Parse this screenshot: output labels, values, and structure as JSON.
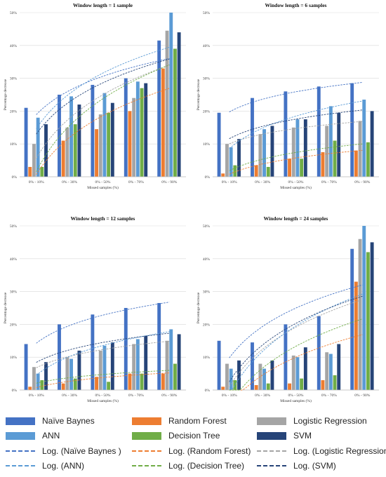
{
  "series_colors": [
    "#4472C4",
    "#ED7D31",
    "#A5A5A5",
    "#5B9BD5",
    "#70AD47",
    "#264478"
  ],
  "chart_data": [
    {
      "type": "bar",
      "title": "Window length = 1 sample",
      "xlabel": "Missed samples (%)",
      "ylabel": "Percentage decrease",
      "ylim": [
        0,
        50
      ],
      "yticks": [
        "0%",
        "10%",
        "20%",
        "30%",
        "40%",
        "50%"
      ],
      "categories": [
        "0% - 10%",
        "0% - 30%",
        "0% - 50%",
        "0% - 70%",
        "0% - 90%"
      ],
      "series": [
        {
          "name": "Naïve Baynes",
          "values": [
            21,
            25,
            28,
            30,
            41.5
          ]
        },
        {
          "name": "Random Forest",
          "values": [
            3,
            11,
            14.5,
            20,
            33
          ]
        },
        {
          "name": "Logistic Regression",
          "values": [
            10,
            15,
            19,
            24,
            44.5
          ]
        },
        {
          "name": "ANN",
          "values": [
            18,
            24.5,
            25.5,
            29,
            50
          ]
        },
        {
          "name": "Decision Tree",
          "values": [
            3,
            16,
            19.5,
            27,
            39
          ]
        },
        {
          "name": "SVM",
          "values": [
            16,
            22,
            22.5,
            28.5,
            44
          ]
        }
      ],
      "trendlines": "logarithmic"
    },
    {
      "type": "bar",
      "title": "Window length = 6 samples",
      "xlabel": "Missed samples (%)",
      "ylabel": "Percentage decrease",
      "ylim": [
        0,
        50
      ],
      "yticks": [
        "0%",
        "10%",
        "20%",
        "30%",
        "40%",
        "50%"
      ],
      "categories": [
        "0% - 10%",
        "0% - 30%",
        "0% - 50%",
        "0% - 70%",
        "0% - 90%"
      ],
      "series": [
        {
          "name": "Naïve Baynes",
          "values": [
            19.5,
            24,
            26,
            27.5,
            28.5
          ]
        },
        {
          "name": "Random Forest",
          "values": [
            1,
            3.5,
            5.5,
            7.5,
            8
          ]
        },
        {
          "name": "Logistic Regression",
          "values": [
            10,
            13,
            15,
            15.5,
            17
          ]
        },
        {
          "name": "ANN",
          "values": [
            9,
            14.5,
            17.5,
            21.5,
            23.5
          ]
        },
        {
          "name": "Decision Tree",
          "values": [
            3.5,
            3,
            5.5,
            11,
            10.5
          ]
        },
        {
          "name": "SVM",
          "values": [
            11.5,
            15.5,
            17.5,
            19.5,
            20
          ]
        }
      ],
      "trendlines": "logarithmic"
    },
    {
      "type": "bar",
      "title": "Window length = 12 samples",
      "xlabel": "Missed samples (%)",
      "ylabel": "Percentage decrease",
      "ylim": [
        0,
        50
      ],
      "yticks": [
        "0%",
        "10%",
        "20%",
        "30%",
        "40%",
        "50%"
      ],
      "categories": [
        "0% - 10%",
        "0% - 30%",
        "0% - 50%",
        "0% - 70%",
        "0% - 90%"
      ],
      "series": [
        {
          "name": "Naïve Baynes",
          "values": [
            14,
            20,
            23,
            25,
            26.5
          ]
        },
        {
          "name": "Random Forest",
          "values": [
            1,
            2,
            4,
            5,
            5
          ]
        },
        {
          "name": "Logistic Regression",
          "values": [
            7,
            10,
            12,
            14,
            15
          ]
        },
        {
          "name": "ANN",
          "values": [
            5,
            9.5,
            13.5,
            15.5,
            18.5
          ]
        },
        {
          "name": "Decision Tree",
          "values": [
            3,
            3.5,
            2.5,
            5,
            8
          ]
        },
        {
          "name": "SVM",
          "values": [
            8.5,
            12,
            14.5,
            16.5,
            17
          ]
        }
      ],
      "trendlines": "logarithmic"
    },
    {
      "type": "bar",
      "title": "Window length = 24 samples",
      "xlabel": "Missed samples (%)",
      "ylabel": "Percentage decrease",
      "ylim": [
        0,
        50
      ],
      "yticks": [
        "0%",
        "10%",
        "20%",
        "30%",
        "40%",
        "50%"
      ],
      "categories": [
        "0% - 10%",
        "0% - 30%",
        "0% - 50%",
        "0% - 70%",
        "0% - 90%"
      ],
      "series": [
        {
          "name": "Naïve Baynes",
          "values": [
            15,
            14.5,
            20,
            22.5,
            43
          ]
        },
        {
          "name": "Random Forest",
          "values": [
            1,
            1.5,
            2,
            3,
            33
          ]
        },
        {
          "name": "Logistic Regression",
          "values": [
            8,
            8,
            10.5,
            11.5,
            46
          ]
        },
        {
          "name": "ANN",
          "values": [
            6.5,
            6.5,
            10,
            11,
            50
          ]
        },
        {
          "name": "Decision Tree",
          "values": [
            3,
            2,
            3.5,
            4.5,
            42
          ]
        },
        {
          "name": "SVM",
          "values": [
            9,
            9,
            13,
            14,
            45
          ]
        }
      ],
      "trendlines": "logarithmic"
    }
  ],
  "legend": {
    "bars": [
      "Naïve Baynes",
      "Random Forest",
      "Logistic Regression",
      "ANN",
      "Decision Tree",
      "SVM"
    ],
    "trends": [
      "Log. (Naïve Baynes )",
      "Log. (Random Forest)",
      "Log. (Logistic Regression )",
      "Log. (ANN)",
      "Log. (Decision Tree)",
      "Log. (SVM)"
    ]
  }
}
